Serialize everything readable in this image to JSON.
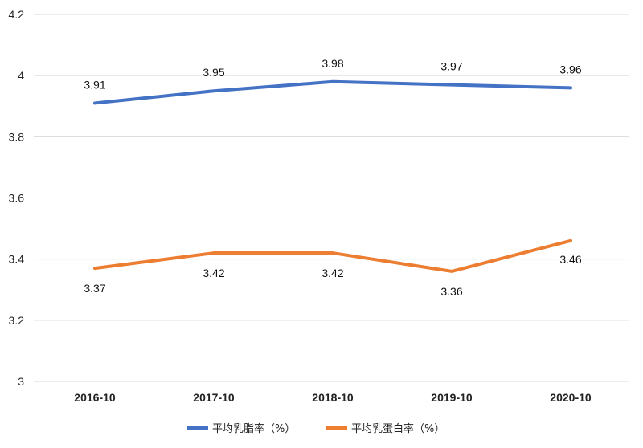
{
  "chart_data": {
    "type": "line",
    "categories": [
      "2016-10",
      "2017-10",
      "2018-10",
      "2019-10",
      "2020-10"
    ],
    "series": [
      {
        "name": "平均乳脂率（%）",
        "values": [
          3.91,
          3.95,
          3.98,
          3.97,
          3.96
        ],
        "color": "#4472C4",
        "labels": [
          "3.91",
          "3.95",
          "3.98",
          "3.97",
          "3.96"
        ]
      },
      {
        "name": "平均乳蛋白率（%）",
        "values": [
          3.37,
          3.42,
          3.42,
          3.36,
          3.46
        ],
        "color": "#ED7D31",
        "labels": [
          "3.37",
          "3.42",
          "3.42",
          "3.36",
          "3.46"
        ]
      }
    ],
    "ylim": [
      3,
      4.2
    ],
    "yticks": [
      "3",
      "3.2",
      "3.4",
      "3.6",
      "3.8",
      "4",
      "4.2"
    ],
    "grid": true,
    "legend": "bottom",
    "gridline_color": "#d9d9d9"
  }
}
